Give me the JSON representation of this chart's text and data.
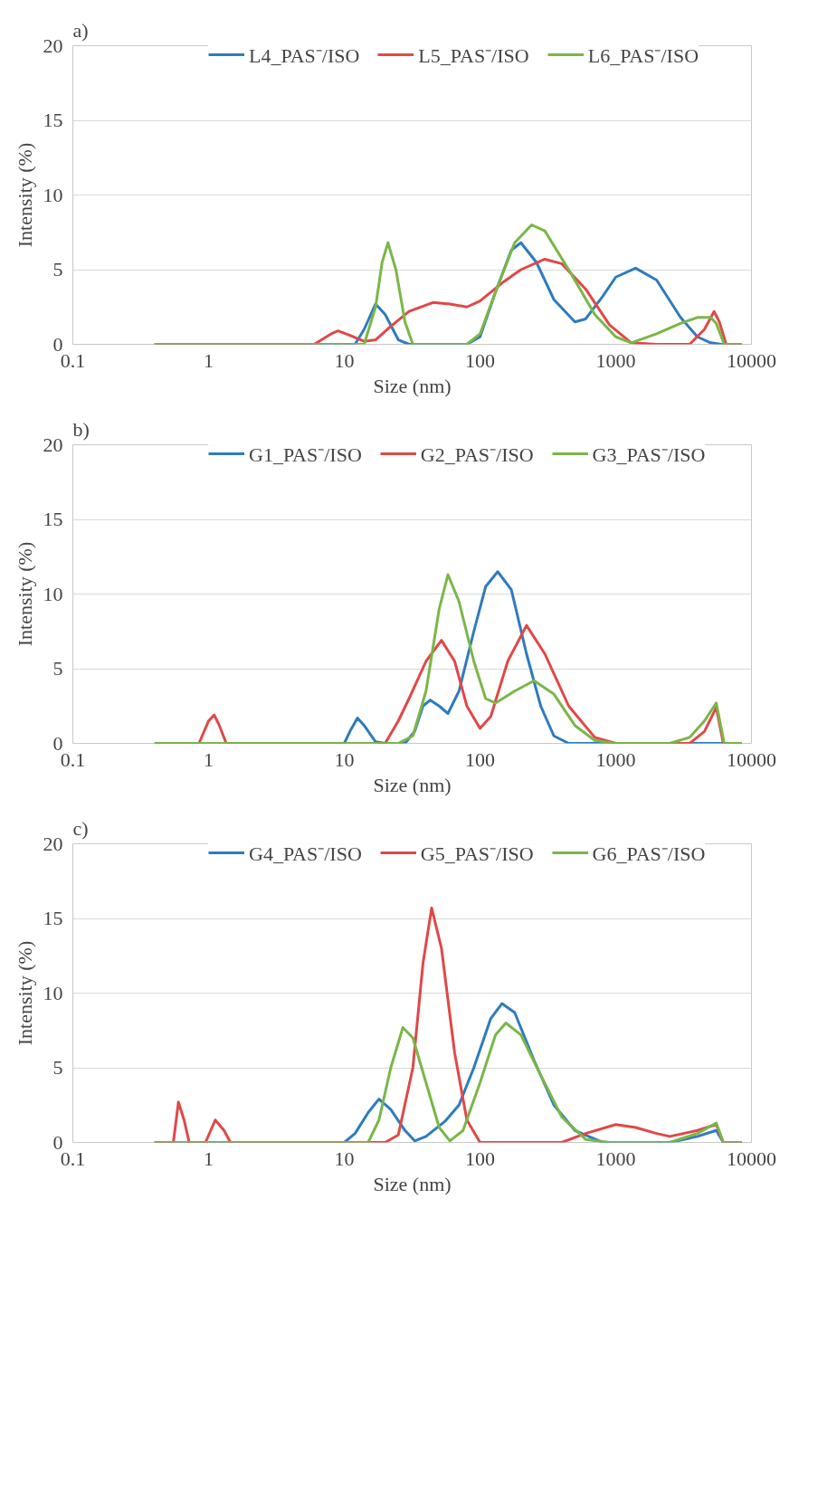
{
  "chart_data": [
    {
      "type": "line",
      "title": "a)",
      "xlabel": "Size (nm)",
      "ylabel": "Intensity (%)",
      "xlim": [
        0.1,
        10000
      ],
      "ylim": [
        0,
        20
      ],
      "xticks": [
        0.1,
        1,
        10,
        100,
        1000,
        10000
      ],
      "yticks": [
        0,
        5,
        10,
        15,
        20
      ],
      "log": "x",
      "grid": "y",
      "legend": "top",
      "series": [
        {
          "name": "L4_PAS⁻/ISO",
          "color": "#2e7bbf",
          "x": [
            0.4,
            12,
            14,
            17,
            20,
            25,
            30,
            80,
            100,
            130,
            170,
            200,
            260,
            350,
            500,
            600,
            800,
            1000,
            1400,
            2000,
            3000,
            4000,
            5000,
            6000,
            8500
          ],
          "values": [
            0,
            0,
            1,
            2.7,
            2,
            0.3,
            0,
            0,
            0.5,
            3.5,
            6.3,
            6.8,
            5.5,
            3,
            1.5,
            1.7,
            3.2,
            4.5,
            5.1,
            4.3,
            1.8,
            0.5,
            0.1,
            0,
            0
          ]
        },
        {
          "name": "L5_PAS⁻/ISO",
          "color": "#e04848",
          "x": [
            0.4,
            6,
            8,
            9,
            11,
            14,
            17,
            22,
            30,
            45,
            60,
            80,
            100,
            150,
            200,
            300,
            400,
            600,
            900,
            1300,
            2000,
            3500,
            4500,
            5300,
            5800,
            6500,
            8500
          ],
          "values": [
            0,
            0,
            0.7,
            0.9,
            0.6,
            0.2,
            0.3,
            1.2,
            2.2,
            2.8,
            2.7,
            2.5,
            2.9,
            4.2,
            5,
            5.7,
            5.4,
            3.7,
            1.3,
            0.1,
            0,
            0,
            1,
            2.2,
            1.5,
            0,
            0
          ]
        },
        {
          "name": "L6_PAS⁻/ISO",
          "color": "#7ab648",
          "x": [
            0.4,
            14,
            17,
            19,
            21,
            24,
            28,
            32,
            80,
            100,
            130,
            180,
            240,
            300,
            450,
            700,
            1000,
            1300,
            2000,
            3000,
            4000,
            5000,
            5500,
            6300,
            8500
          ],
          "values": [
            0,
            0,
            2.5,
            5.5,
            6.8,
            5,
            1.5,
            0,
            0,
            0.7,
            3.5,
            6.8,
            8,
            7.6,
            5,
            2,
            0.5,
            0.1,
            0.7,
            1.4,
            1.8,
            1.8,
            1.4,
            0,
            0
          ]
        }
      ]
    },
    {
      "type": "line",
      "title": "b)",
      "xlabel": "Size (nm)",
      "ylabel": "Intensity (%)",
      "xlim": [
        0.1,
        10000
      ],
      "ylim": [
        0,
        20
      ],
      "xticks": [
        0.1,
        1,
        10,
        100,
        1000,
        10000
      ],
      "yticks": [
        0,
        5,
        10,
        15,
        20
      ],
      "log": "x",
      "grid": "y",
      "legend": "top",
      "series": [
        {
          "name": "G1_PAS⁻/ISO",
          "color": "#2e7bbf",
          "x": [
            0.4,
            10,
            11,
            12.5,
            14,
            17,
            20,
            28,
            33,
            38,
            43,
            50,
            58,
            70,
            90,
            110,
            135,
            170,
            220,
            280,
            350,
            450,
            8500
          ],
          "values": [
            0,
            0,
            0.8,
            1.7,
            1.2,
            0.1,
            0,
            0,
            0.8,
            2.5,
            2.9,
            2.5,
            2,
            3.5,
            7.5,
            10.5,
            11.5,
            10.3,
            6,
            2.5,
            0.5,
            0,
            0
          ]
        },
        {
          "name": "G2_PAS⁻/ISO",
          "color": "#e04848",
          "x": [
            0.4,
            0.85,
            1,
            1.1,
            1.2,
            1.35,
            20,
            25,
            30,
            40,
            52,
            65,
            80,
            100,
            120,
            160,
            220,
            300,
            450,
            700,
            1000,
            3500,
            4500,
            5500,
            6200,
            8500
          ],
          "values": [
            0,
            0,
            1.5,
            1.9,
            1.2,
            0,
            0,
            1.5,
            3,
            5.5,
            6.9,
            5.5,
            2.5,
            1,
            1.8,
            5.5,
            7.9,
            6,
            2.5,
            0.4,
            0,
            0,
            0.8,
            2.4,
            0,
            0
          ]
        },
        {
          "name": "G3_PAS⁻/ISO",
          "color": "#7ab648",
          "x": [
            0.4,
            25,
            32,
            40,
            50,
            58,
            70,
            90,
            110,
            130,
            180,
            250,
            350,
            500,
            700,
            1000,
            2500,
            3500,
            4500,
            5500,
            6300,
            8500
          ],
          "values": [
            0,
            0,
            0.5,
            3.5,
            9,
            11.3,
            9.5,
            5.5,
            3,
            2.7,
            3.5,
            4.2,
            3.3,
            1.2,
            0.2,
            0,
            0,
            0.4,
            1.5,
            2.7,
            0,
            0
          ]
        }
      ]
    },
    {
      "type": "line",
      "title": "c)",
      "xlabel": "Size (nm)",
      "ylabel": "Intensity (%)",
      "xlim": [
        0.1,
        10000
      ],
      "ylim": [
        0,
        20
      ],
      "xticks": [
        0.1,
        1,
        10,
        100,
        1000,
        10000
      ],
      "yticks": [
        0,
        5,
        10,
        15,
        20
      ],
      "log": "x",
      "grid": "y",
      "legend": "top",
      "series": [
        {
          "name": "G4_PAS⁻/ISO",
          "color": "#2e7bbf",
          "x": [
            0.4,
            10,
            12,
            15,
            18,
            22,
            28,
            33,
            40,
            55,
            70,
            90,
            120,
            145,
            180,
            250,
            350,
            500,
            800,
            2500,
            4000,
            5500,
            6200,
            8500
          ],
          "values": [
            0,
            0,
            0.6,
            2,
            2.9,
            2.2,
            0.8,
            0.1,
            0.4,
            1.4,
            2.5,
            5,
            8.3,
            9.3,
            8.7,
            5.5,
            2.5,
            0.8,
            0,
            0,
            0.4,
            0.8,
            0,
            0
          ]
        },
        {
          "name": "G5_PAS⁻/ISO",
          "color": "#e04848",
          "x": [
            0.4,
            0.55,
            0.6,
            0.66,
            0.72,
            0.95,
            1.12,
            1.3,
            1.45,
            20,
            25,
            32,
            38,
            44,
            52,
            65,
            80,
            100,
            400,
            600,
            1000,
            1400,
            2000,
            2500,
            4000,
            5500,
            6200,
            8500
          ],
          "values": [
            0,
            0,
            2.7,
            1.5,
            0,
            0,
            1.5,
            0.8,
            0,
            0,
            0.5,
            5,
            12,
            15.7,
            13,
            6,
            1.5,
            0,
            0,
            0.6,
            1.2,
            1,
            0.6,
            0.4,
            0.8,
            1.2,
            0,
            0
          ]
        },
        {
          "name": "G6_PAS⁻/ISO",
          "color": "#7ab648",
          "x": [
            0.4,
            15,
            18,
            22,
            27,
            32,
            40,
            50,
            60,
            75,
            100,
            130,
            155,
            200,
            280,
            400,
            600,
            900,
            2500,
            4000,
            5500,
            6200,
            8500
          ],
          "values": [
            0,
            0,
            1.5,
            5,
            7.7,
            7,
            4,
            1,
            0.1,
            0.8,
            4,
            7.2,
            8,
            7.2,
            4.5,
            1.7,
            0.2,
            0,
            0,
            0.6,
            1.3,
            0,
            0
          ]
        }
      ]
    }
  ]
}
